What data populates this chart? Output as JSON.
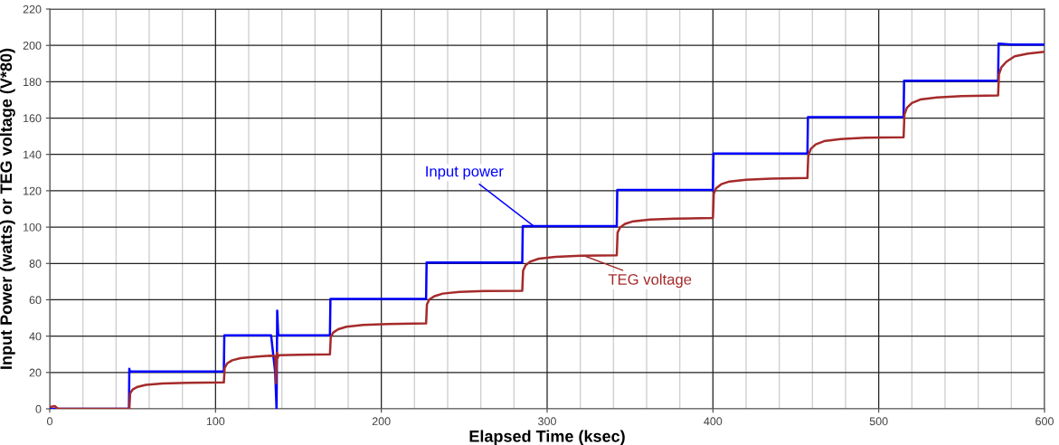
{
  "chart_data": {
    "type": "line",
    "xlabel": "Elapsed Time (ksec)",
    "ylabel": "Input Power (watts) or TEG voltage (V*80)",
    "xlim": [
      0,
      600
    ],
    "ylim": [
      0,
      220
    ],
    "xticks": [
      0,
      100,
      200,
      300,
      400,
      500,
      600
    ],
    "yticks": [
      0,
      20,
      40,
      60,
      80,
      100,
      120,
      140,
      160,
      180,
      200,
      220
    ],
    "grid": true,
    "marker": "none",
    "line_style": "solid",
    "series": [
      {
        "color": "#0000ff",
        "x": [
          0,
          47.8,
          48,
          48.3,
          105,
          105.3,
          133.5,
          136,
          136.8,
          137.2,
          137.8,
          169,
          169.3,
          227,
          227.3,
          285,
          285.3,
          342,
          342.3,
          400,
          400.3,
          457,
          457.3,
          515,
          515.3,
          572,
          572.3,
          580,
          600
        ],
        "values": [
          0,
          0,
          22,
          20.5,
          20.5,
          40.5,
          40.5,
          20,
          0,
          54,
          40.5,
          40.5,
          60.5,
          60.5,
          80.5,
          80.5,
          100.5,
          100.5,
          120.5,
          120.5,
          140.5,
          140.5,
          160.5,
          160.5,
          180.5,
          180.5,
          201,
          200.5,
          200.5
        ]
      },
      {
        "color": "#a52a2a",
        "x": [
          0,
          3,
          5,
          48,
          48.5,
          50,
          53,
          58,
          68,
          83,
          105,
          105.5,
          107,
          110,
          115,
          125,
          133,
          136,
          136.5,
          137,
          137.5,
          138,
          150,
          169,
          169.5,
          171,
          174,
          179,
          189,
          204,
          227,
          227.5,
          229,
          232,
          237,
          247,
          262,
          285,
          285.5,
          287,
          290,
          295,
          305,
          320,
          342,
          342.5,
          344,
          347,
          352,
          362,
          377,
          400,
          400.5,
          402,
          405,
          410,
          420,
          435,
          457,
          457.5,
          459,
          462,
          467,
          477,
          492,
          515,
          515.5,
          517,
          520,
          525,
          535,
          550,
          572,
          572.5,
          574,
          577,
          582,
          590,
          600
        ],
        "values": [
          1,
          1.5,
          0,
          0,
          8.5,
          10.6,
          12.1,
          13.2,
          13.9,
          14.3,
          14.5,
          22.5,
          25,
          26.7,
          27.9,
          28.8,
          29.3,
          29,
          14,
          31,
          28,
          29.5,
          29.8,
          30,
          39.5,
          42,
          43.8,
          45.2,
          46.2,
          46.7,
          47,
          57.5,
          60.2,
          62,
          63.4,
          64.3,
          64.8,
          65,
          76,
          79,
          81.1,
          82.6,
          83.6,
          84.2,
          84.5,
          97,
          99.8,
          101.8,
          103.2,
          104.2,
          104.7,
          105,
          118.5,
          121.5,
          123.6,
          125.1,
          126.1,
          126.7,
          127,
          139.5,
          143,
          145.5,
          147.3,
          148.5,
          149.2,
          149.5,
          162,
          165.7,
          168.3,
          170.2,
          171.4,
          172.1,
          172.5,
          184,
          188,
          191,
          194,
          195.5,
          196.5
        ]
      }
    ],
    "annotations": [
      {
        "text": "Input power",
        "x": 292,
        "y": 100.5
      },
      {
        "text": "TEG voltage",
        "x": 323,
        "y": 84
      }
    ]
  }
}
